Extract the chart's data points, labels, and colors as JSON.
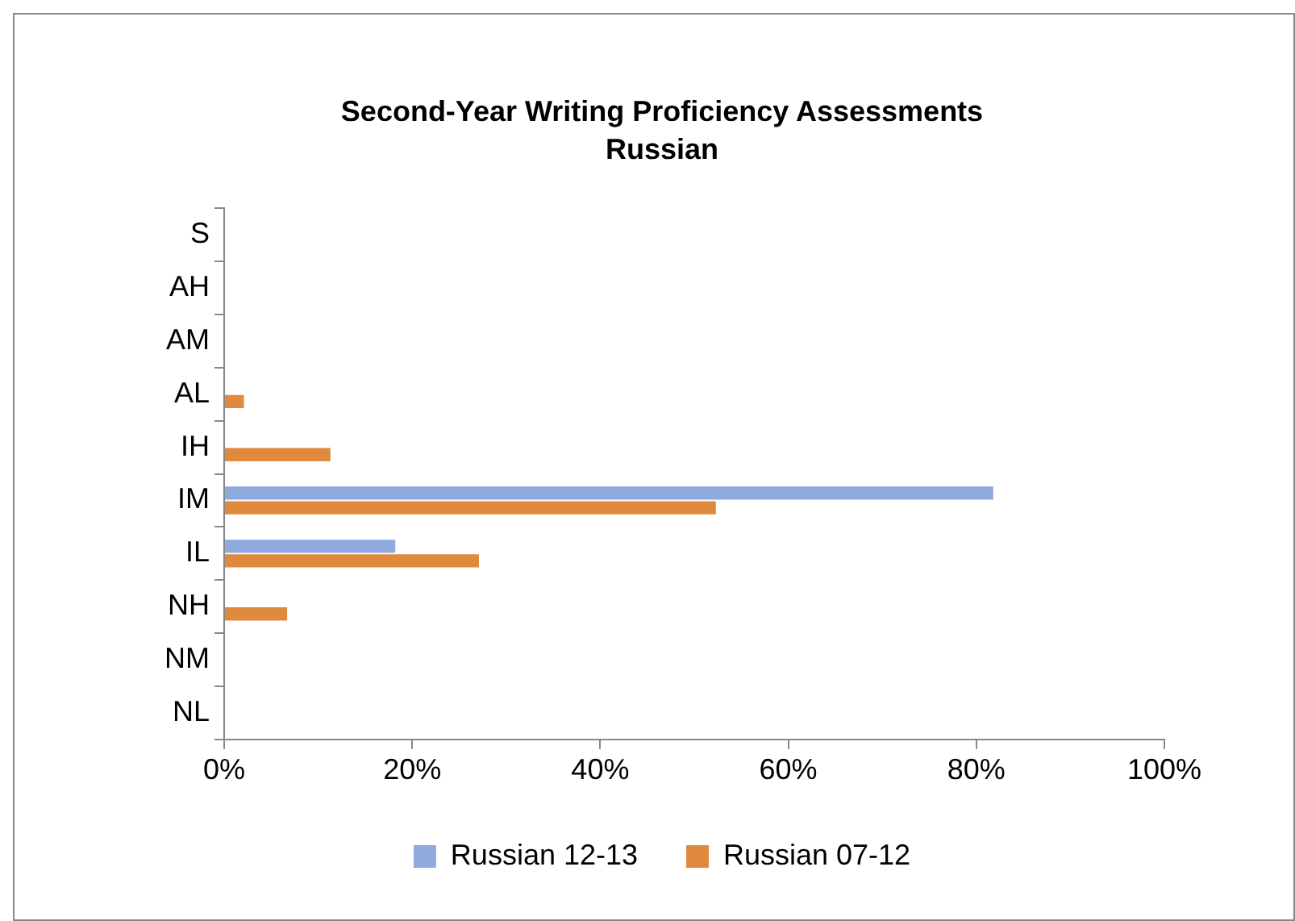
{
  "chart_data": {
    "type": "bar",
    "orientation": "horizontal",
    "title": "Second-Year Writing Proficiency Assessments",
    "subtitle": "Russian",
    "categories": [
      "S",
      "AH",
      "AM",
      "AL",
      "IH",
      "IM",
      "IL",
      "NH",
      "NM",
      "NL"
    ],
    "series": [
      {
        "name": "Russian 12-13",
        "color": "#8faadc",
        "values": [
          0,
          0,
          0,
          0,
          0,
          81.8,
          18.2,
          0,
          0,
          0
        ]
      },
      {
        "name": "Russian 07-12",
        "color": "#e08a3e",
        "values": [
          0,
          0,
          0,
          2.1,
          11.3,
          52.3,
          27.1,
          6.7,
          0,
          0
        ]
      }
    ],
    "xlim": [
      0,
      100
    ],
    "xticks": [
      {
        "value": 0,
        "label": "0%"
      },
      {
        "value": 20,
        "label": "20%"
      },
      {
        "value": 40,
        "label": "40%"
      },
      {
        "value": 60,
        "label": "60%"
      },
      {
        "value": 80,
        "label": "80%"
      },
      {
        "value": 100,
        "label": "100%"
      }
    ],
    "grid": false,
    "legend": "bottom"
  }
}
